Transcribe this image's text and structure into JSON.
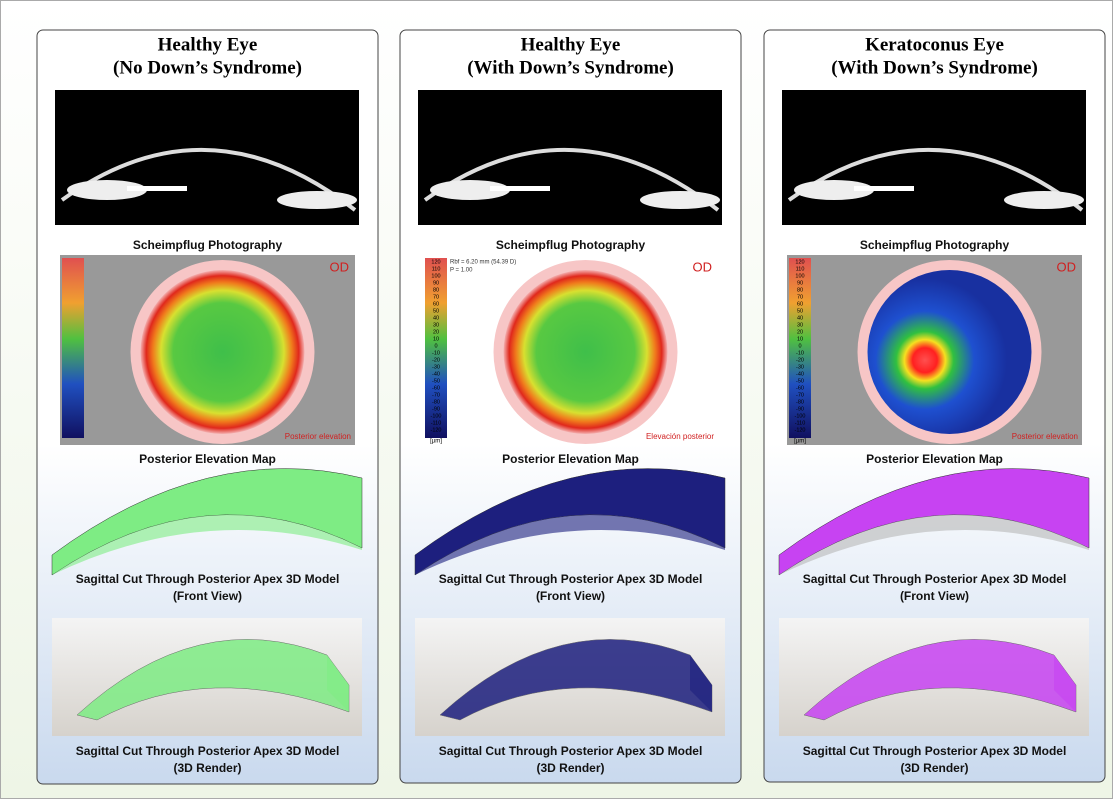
{
  "columns": [
    {
      "title": [
        "Healthy Eye",
        "(No Down’s Syndrome)"
      ],
      "photo_caption": "Scheimpflug Photography",
      "map": {
        "side": "OD",
        "label": "Posterior elevation"
      },
      "map_caption": "Posterior Elevation Map",
      "front_caption": [
        "Sagittal Cut Through Posterior Apex 3D Model",
        "(Front View)"
      ],
      "render_caption": [
        "Sagittal Cut Through Posterior Apex 3D Model",
        "(3D Render)"
      ],
      "model_color": "#7eec84"
    },
    {
      "title": [
        "Healthy Eye",
        "(With Down’s Syndrome)"
      ],
      "photo_caption": "Scheimpflug Photography",
      "map": {
        "side": "OD",
        "label": "Elevación posterior",
        "info": [
          "Rbf = 6.20 mm (54.39 D)",
          "P = 1.00"
        ],
        "unit": "[µm]",
        "scale": [
          "120",
          "110",
          "100",
          "90",
          "80",
          "70",
          "60",
          "50",
          "40",
          "30",
          "20",
          "10",
          "0",
          "-10",
          "-20",
          "-30",
          "-40",
          "-50",
          "-60",
          "-70",
          "-80",
          "-90",
          "-100",
          "-110",
          "-120"
        ]
      },
      "map_caption": "Posterior Elevation Map",
      "front_caption": [
        "Sagittal Cut Through Posterior Apex 3D Model",
        "(Front View)"
      ],
      "render_caption": [
        "Sagittal Cut Through Posterior Apex 3D Model",
        "(3D Render)"
      ],
      "model_color": "#1d1f7e"
    },
    {
      "title": [
        "Keratoconus Eye",
        "(With Down’s Syndrome)"
      ],
      "photo_caption": "Scheimpflug Photography",
      "map": {
        "side": "OD",
        "label": "Posterior elevation",
        "unit": "[µm]",
        "scale": [
          "120",
          "110",
          "100",
          "90",
          "80",
          "70",
          "60",
          "50",
          "40",
          "30",
          "20",
          "10",
          "0",
          "-10",
          "-20",
          "-30",
          "-40",
          "-50",
          "-60",
          "-70",
          "-80",
          "-90",
          "-100",
          "-110",
          "-120"
        ]
      },
      "map_caption": "Posterior Elevation Map",
      "front_caption": [
        "Sagittal Cut Through Posterior Apex 3D Model",
        "(Front View)"
      ],
      "render_caption": [
        "Sagittal Cut Through Posterior Apex 3D Model",
        "(3D Render)"
      ],
      "model_color": "#c743f2"
    }
  ]
}
